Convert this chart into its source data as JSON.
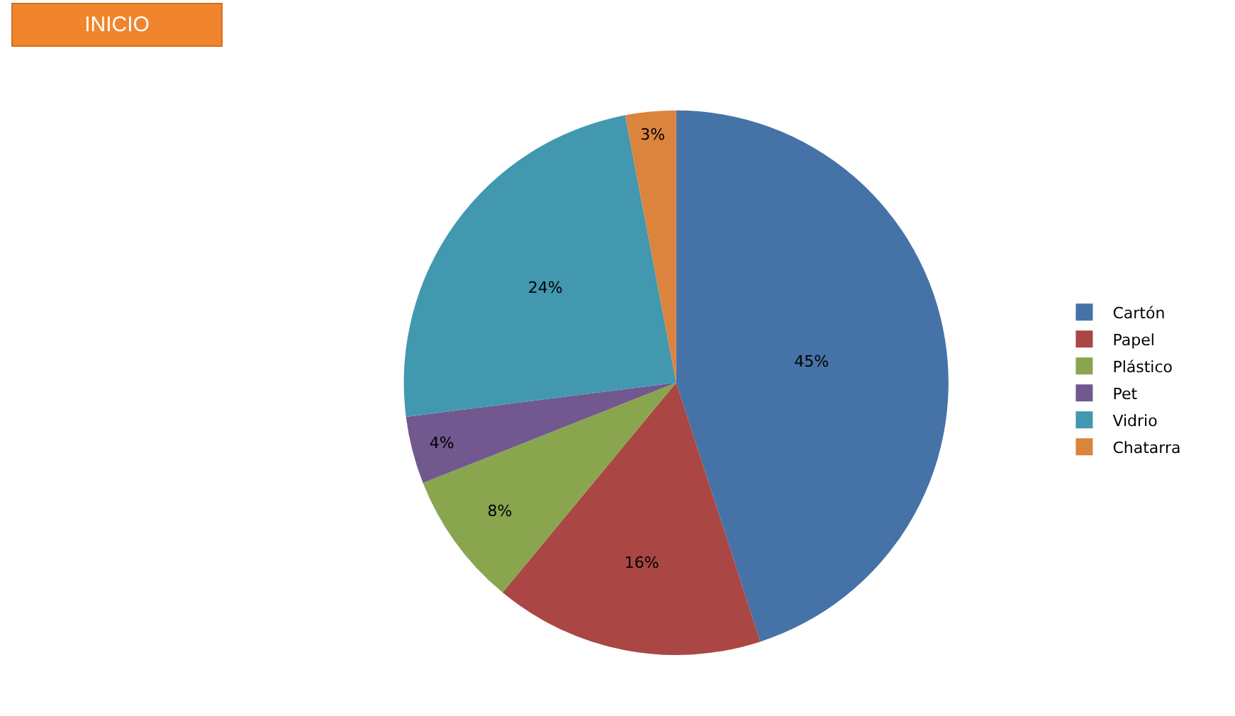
{
  "chart_data": {
    "type": "pie",
    "categories": [
      "Cartón",
      "Papel",
      "Plástico",
      "Pet",
      "Vidrio",
      "Chatarra"
    ],
    "values": [
      45,
      16,
      8,
      4,
      24,
      3
    ],
    "value_labels": [
      "45%",
      "16%",
      "8%",
      "4%",
      "24%",
      "3%"
    ],
    "colors": [
      "#4572a7",
      "#aa4643",
      "#89a54e",
      "#71588f",
      "#4198af",
      "#db843d"
    ],
    "legend": "right",
    "annotations": [
      "INICIO"
    ]
  }
}
